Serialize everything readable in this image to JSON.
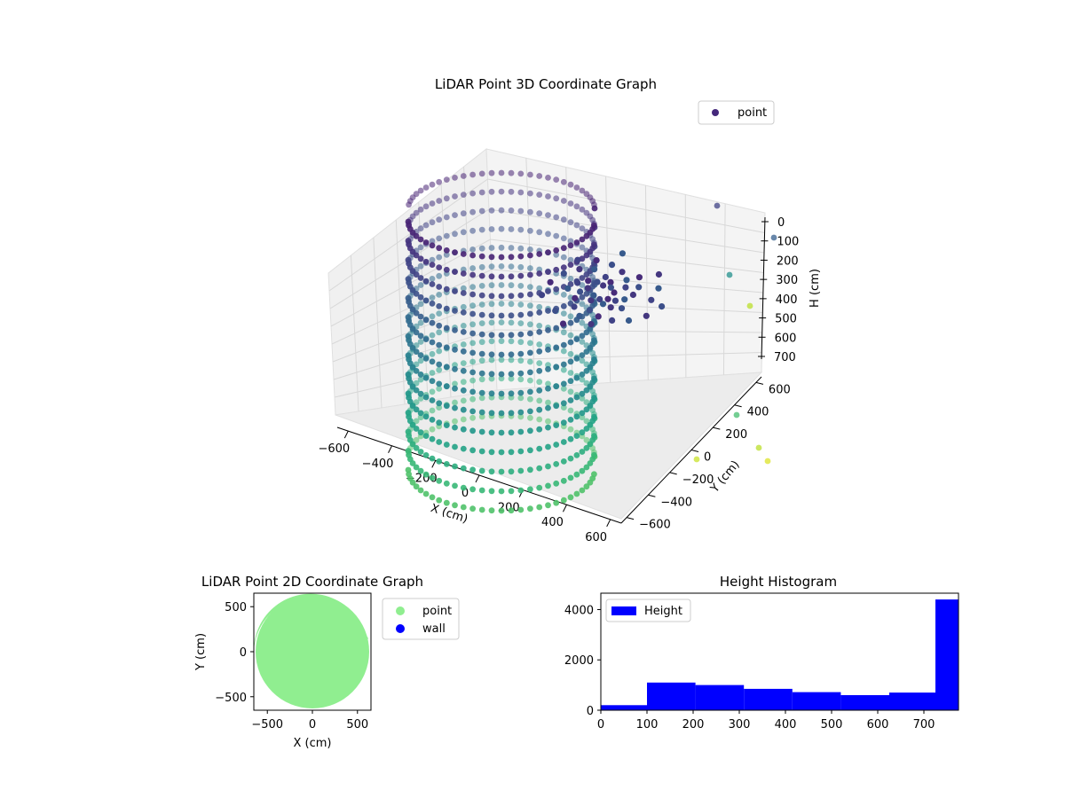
{
  "chart_data": [
    {
      "type": "scatter3d",
      "title": "LiDAR Point 3D Coordinate Graph",
      "xlabel": "X (cm)",
      "ylabel": "Y (cm)",
      "zlabel": "H (cm)",
      "xticks": [
        "−600",
        "−400",
        "−200",
        "0",
        "200",
        "400",
        "600"
      ],
      "yticks": [
        "−600",
        "−400",
        "−200",
        "0",
        "200",
        "400",
        "600"
      ],
      "zticks": [
        "0",
        "100",
        "200",
        "300",
        "400",
        "500",
        "600",
        "700"
      ],
      "xlim": [
        -650,
        650
      ],
      "ylim": [
        -650,
        650
      ],
      "zlim": [
        780,
        0
      ],
      "legend": [
        "point"
      ],
      "legend_position": "top-right",
      "colormap": "viridis",
      "colors": {
        "legend_marker": "#45287b",
        "pane": "#f2f2f2",
        "grid": "#dcdcdc"
      },
      "shape": "cylindrical room scan, radius ~600, heights 0-770"
    },
    {
      "type": "scatter",
      "title": "LiDAR Point 2D Coordinate Graph",
      "xlabel": "X (cm)",
      "ylabel": "Y (cm)",
      "xticks": [
        "−500",
        "0",
        "500"
      ],
      "yticks": [
        "500",
        "0",
        "−500"
      ],
      "xlim": [
        -650,
        650
      ],
      "ylim": [
        -650,
        650
      ],
      "series": [
        {
          "name": "point",
          "color": "#90ee90"
        },
        {
          "name": "wall",
          "color": "#0000ff"
        }
      ],
      "legend_position": "outside-right",
      "disc_radius": 640
    },
    {
      "type": "bar",
      "title": "Height Histogram",
      "xticks": [
        "0",
        "100",
        "200",
        "300",
        "400",
        "500",
        "600",
        "700"
      ],
      "yticks": [
        "0",
        "2000",
        "4000"
      ],
      "xlim": [
        0,
        775
      ],
      "ylim": [
        0,
        4650
      ],
      "legend": [
        "Height"
      ],
      "legend_position": "top-left",
      "color": "#0000ff",
      "bins": [
        {
          "x0": 0,
          "x1": 100,
          "value": 200
        },
        {
          "x0": 100,
          "x1": 205,
          "value": 1100
        },
        {
          "x0": 205,
          "x1": 310,
          "value": 1000
        },
        {
          "x0": 310,
          "x1": 415,
          "value": 850
        },
        {
          "x0": 415,
          "x1": 520,
          "value": 720
        },
        {
          "x0": 520,
          "x1": 625,
          "value": 600
        },
        {
          "x0": 625,
          "x1": 725,
          "value": 700
        },
        {
          "x0": 725,
          "x1": 775,
          "value": 4400
        }
      ]
    }
  ]
}
